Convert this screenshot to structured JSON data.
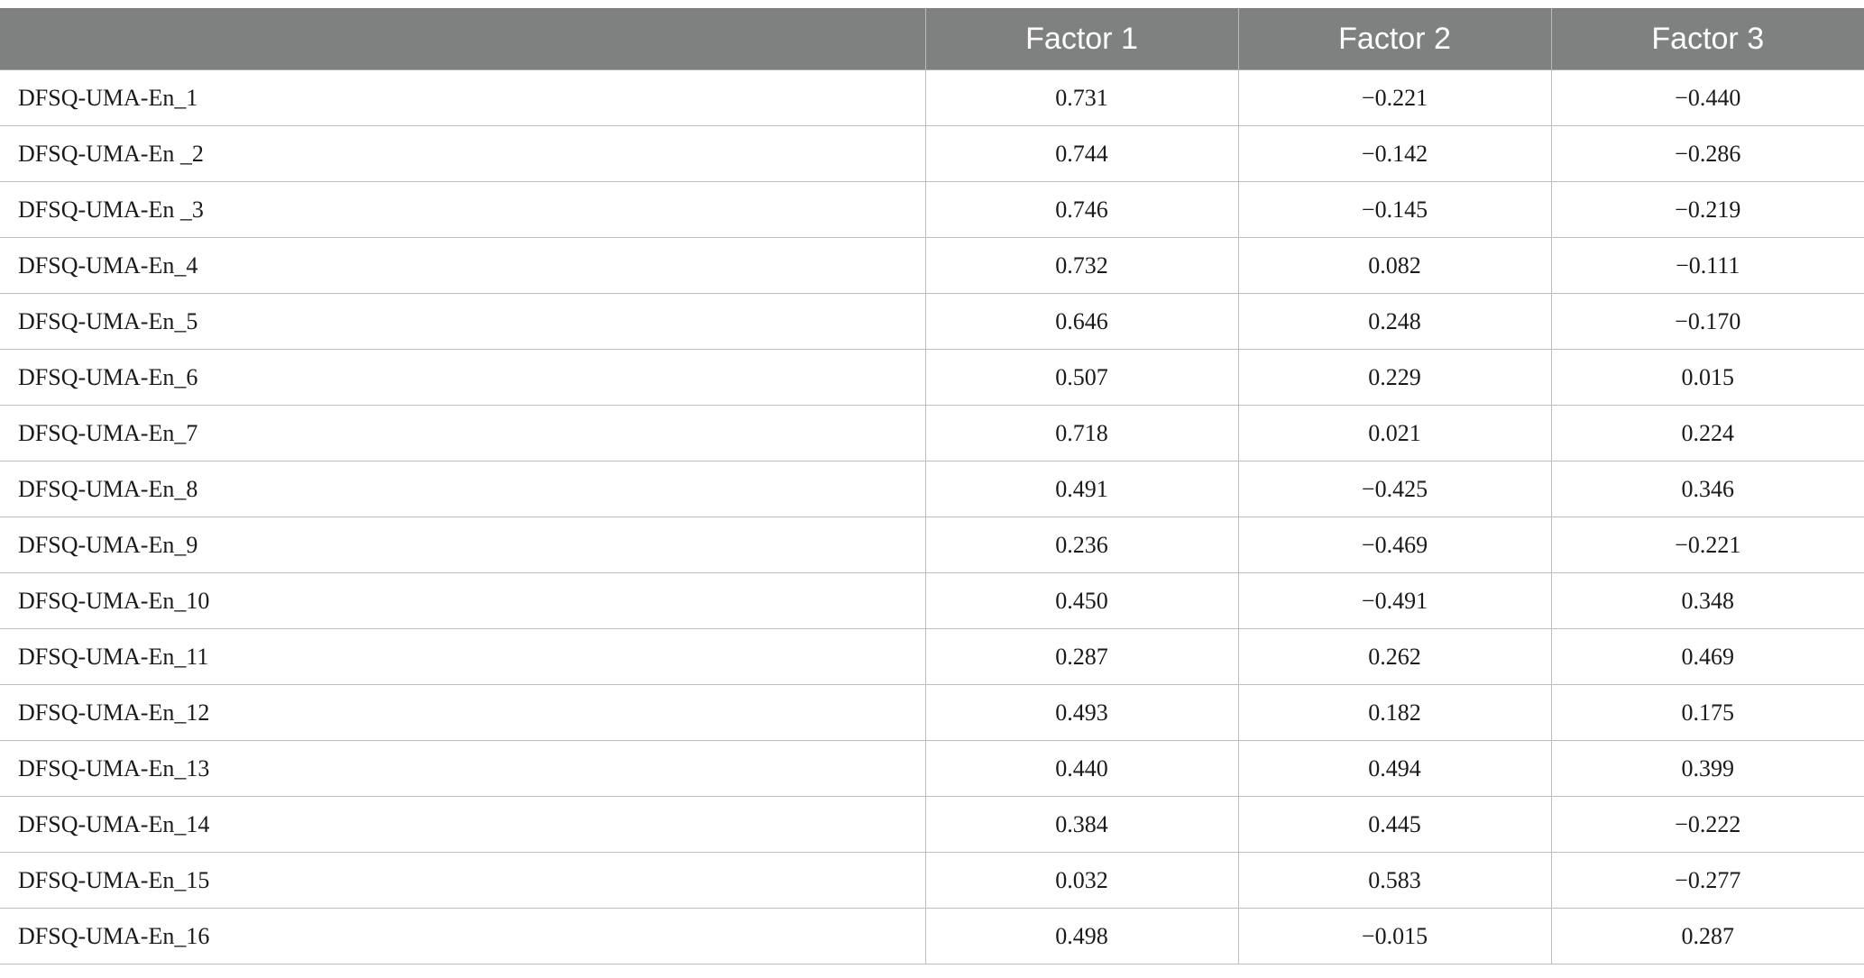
{
  "table": {
    "headers": [
      "",
      "Factor 1",
      "Factor 2",
      "Factor 3"
    ],
    "rows": [
      [
        "DFSQ-UMA-En_1",
        "0.731",
        "−0.221",
        "−0.440"
      ],
      [
        "DFSQ-UMA-En _2",
        "0.744",
        "−0.142",
        "−0.286"
      ],
      [
        "DFSQ-UMA-En _3",
        "0.746",
        "−0.145",
        "−0.219"
      ],
      [
        "DFSQ-UMA-En_4",
        "0.732",
        "0.082",
        "−0.111"
      ],
      [
        "DFSQ-UMA-En_5",
        "0.646",
        "0.248",
        "−0.170"
      ],
      [
        "DFSQ-UMA-En_6",
        "0.507",
        "0.229",
        "0.015"
      ],
      [
        "DFSQ-UMA-En_7",
        "0.718",
        "0.021",
        "0.224"
      ],
      [
        "DFSQ-UMA-En_8",
        "0.491",
        "−0.425",
        "0.346"
      ],
      [
        "DFSQ-UMA-En_9",
        "0.236",
        "−0.469",
        "−0.221"
      ],
      [
        "DFSQ-UMA-En_10",
        "0.450",
        "−0.491",
        "0.348"
      ],
      [
        "DFSQ-UMA-En_11",
        "0.287",
        "0.262",
        "0.469"
      ],
      [
        "DFSQ-UMA-En_12",
        "0.493",
        "0.182",
        "0.175"
      ],
      [
        "DFSQ-UMA-En_13",
        "0.440",
        "0.494",
        "0.399"
      ],
      [
        "DFSQ-UMA-En_14",
        "0.384",
        "0.445",
        "−0.222"
      ],
      [
        "DFSQ-UMA-En_15",
        "0.032",
        "0.583",
        "−0.277"
      ],
      [
        "DFSQ-UMA-En_16",
        "0.498",
        "−0.015",
        "0.287"
      ]
    ]
  }
}
